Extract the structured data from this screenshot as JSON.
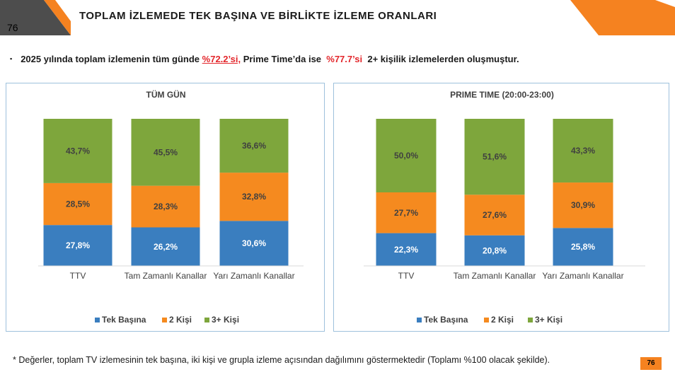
{
  "page": {
    "number_top": "76",
    "number_bottom": "76",
    "title": "TOPLAM İZLEMEDE TEK BAŞINA VE BİRLİKTE İZLEME ORANLARI",
    "summary": {
      "bullet": "▪",
      "part1": "2025 yılında toplam izlemenin tüm günde ",
      "highlight1": "%72.2’si,",
      "part2": " Prime Time’da ise  ",
      "highlight2": "%77.7’si",
      "part3": "  2+ kişilik izlemelerden oluşmuştur."
    },
    "footnote": "* Değerler, toplam TV izlemesinin tek başına, iki kişi ve grupla izleme açısından dağılımını göstermektedir (Toplamı %100 olacak şekilde)."
  },
  "colors": {
    "orange_accent": "#f58220",
    "tek_basina": "#3a7ebf",
    "iki_kisi": "#f58a1f",
    "uc_arti_kisi": "#7ea63c",
    "panel_border": "#9ec1dc",
    "highlight_red": "#e3262b"
  },
  "chart_data": [
    {
      "type": "bar",
      "stacked": true,
      "title": "TÜM GÜN",
      "categories": [
        "TTV",
        "Tam Zamanlı Kanallar",
        "Yarı Zamanlı Kanallar"
      ],
      "series": [
        {
          "name": "Tek Başına",
          "values": [
            27.8,
            26.2,
            30.6
          ],
          "labels": [
            "27,8%",
            "26,2%",
            "30,6%"
          ],
          "color": "#3a7ebf"
        },
        {
          "name": "2 Kişi",
          "values": [
            28.5,
            28.3,
            32.8
          ],
          "labels": [
            "28,5%",
            "28,3%",
            "32,8%"
          ],
          "color": "#f58a1f"
        },
        {
          "name": "3+ Kişi",
          "values": [
            43.7,
            45.5,
            36.6
          ],
          "labels": [
            "43,7%",
            "45,5%",
            "36,6%"
          ],
          "color": "#7ea63c"
        }
      ],
      "ylim": [
        0,
        100
      ],
      "legend_position": "bottom"
    },
    {
      "type": "bar",
      "stacked": true,
      "title": "PRIME TIME (20:00-23:00)",
      "categories": [
        "TTV",
        "Tam Zamanlı Kanallar",
        "Yarı Zamanlı Kanallar"
      ],
      "series": [
        {
          "name": "Tek Başına",
          "values": [
            22.3,
            20.8,
            25.8
          ],
          "labels": [
            "22,3%",
            "20,8%",
            "25,8%"
          ],
          "color": "#3a7ebf"
        },
        {
          "name": "2 Kişi",
          "values": [
            27.7,
            27.6,
            30.9
          ],
          "labels": [
            "27,7%",
            "27,6%",
            "30,9%"
          ],
          "color": "#f58a1f"
        },
        {
          "name": "3+ Kişi",
          "values": [
            50.0,
            51.6,
            43.3
          ],
          "labels": [
            "50,0%",
            "51,6%",
            "43,3%"
          ],
          "color": "#7ea63c"
        }
      ],
      "ylim": [
        0,
        100
      ],
      "legend_position": "bottom"
    }
  ]
}
